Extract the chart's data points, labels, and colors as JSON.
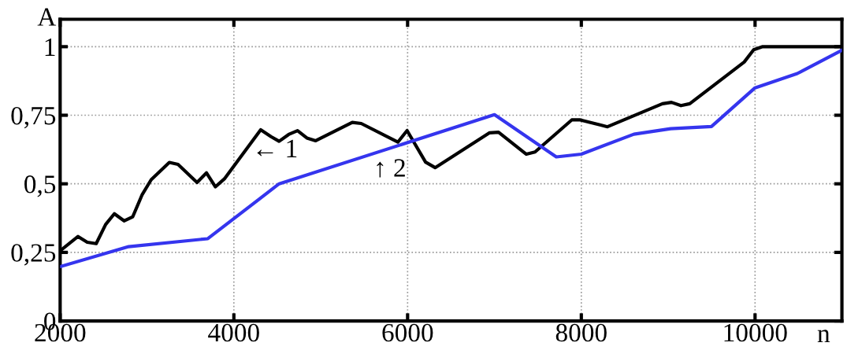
{
  "chart_data": {
    "type": "line",
    "xlabel": "n",
    "ylabel": "A",
    "xlim": [
      2000,
      11000
    ],
    "ylim": [
      0,
      1.1
    ],
    "xticks": [
      2000,
      4000,
      6000,
      8000,
      10000
    ],
    "yticks": [
      {
        "value": 0,
        "label": "0"
      },
      {
        "value": 0.25,
        "label": "0,25"
      },
      {
        "value": 0.5,
        "label": "0,5"
      },
      {
        "value": 0.75,
        "label": "0,75"
      },
      {
        "value": 1,
        "label": "1"
      }
    ],
    "grid": true,
    "marker": "none",
    "line_style": "solid",
    "series": [
      {
        "color": "#000000",
        "x": [
          2000,
          2206,
          2312,
          2415,
          2524,
          2624,
          2736,
          2836,
          2945,
          3048,
          3257,
          3357,
          3576,
          3685,
          3788,
          3891,
          4309,
          4428,
          4521,
          4631,
          4733,
          4840,
          4942,
          5363,
          5466,
          5888,
          5994,
          6207,
          6317,
          6944,
          7047,
          7367,
          7467,
          7890,
          7987,
          8301,
          8934,
          9038,
          9147,
          9248,
          9875,
          9984,
          10088,
          11000
        ],
        "values": [
          0.256,
          0.308,
          0.287,
          0.282,
          0.352,
          0.391,
          0.365,
          0.38,
          0.461,
          0.515,
          0.578,
          0.571,
          0.505,
          0.54,
          0.489,
          0.518,
          0.697,
          0.672,
          0.655,
          0.68,
          0.694,
          0.667,
          0.657,
          0.724,
          0.72,
          0.652,
          0.694,
          0.579,
          0.559,
          0.686,
          0.688,
          0.608,
          0.616,
          0.733,
          0.733,
          0.708,
          0.792,
          0.797,
          0.785,
          0.792,
          0.944,
          0.989,
          1.0,
          1.0
        ]
      },
      {
        "color": "#3535ee",
        "x": [
          2000,
          2789,
          3700,
          4521,
          7000,
          7712,
          8000,
          8605,
          9028,
          9498,
          10000,
          10486,
          11000
        ],
        "values": [
          0.198,
          0.271,
          0.3,
          0.5,
          0.752,
          0.598,
          0.608,
          0.681,
          0.701,
          0.709,
          0.85,
          0.902,
          0.987
        ]
      }
    ],
    "annotations": [
      {
        "text": "← 1",
        "x": 4209,
        "y": 0.62
      },
      {
        "text": "↑ 2",
        "x": 5607,
        "y": 0.593
      }
    ]
  }
}
